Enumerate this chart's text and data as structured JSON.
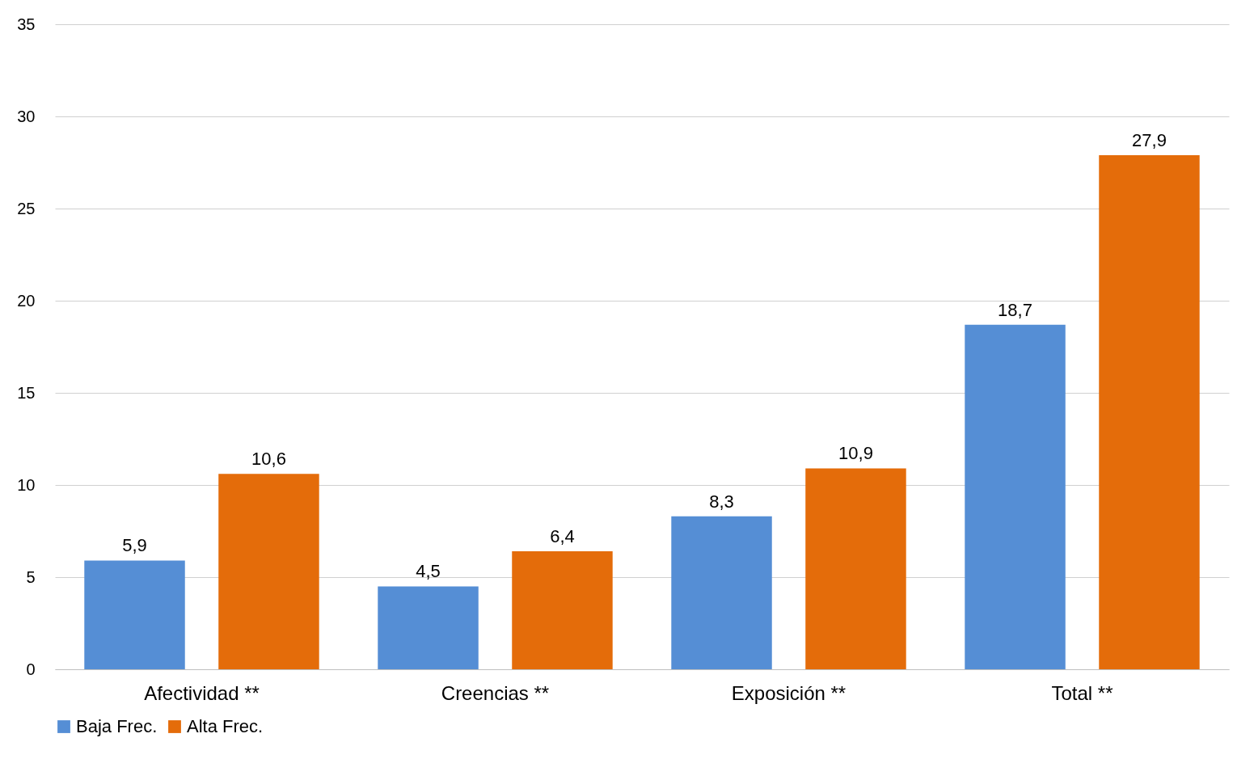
{
  "chart_data": {
    "type": "bar",
    "categories": [
      "Afectividad **",
      "Creencias **",
      "Exposición **",
      "Total **"
    ],
    "series": [
      {
        "name": "Baja Frec.",
        "color": "#558ed5",
        "values": [
          5.9,
          4.5,
          8.3,
          18.7
        ],
        "value_labels": [
          "5,9",
          "4,5",
          "8,3",
          "18,7"
        ]
      },
      {
        "name": "Alta Frec.",
        "color": "#e46c0a",
        "values": [
          10.6,
          6.4,
          10.9,
          27.9
        ],
        "value_labels": [
          "10,6",
          "6,4",
          "10,9",
          "27,9"
        ]
      }
    ],
    "ylim": [
      0,
      35
    ],
    "yticks": [
      0,
      5,
      10,
      15,
      20,
      25,
      30,
      35
    ],
    "grid": "y",
    "legend": "bottom"
  }
}
